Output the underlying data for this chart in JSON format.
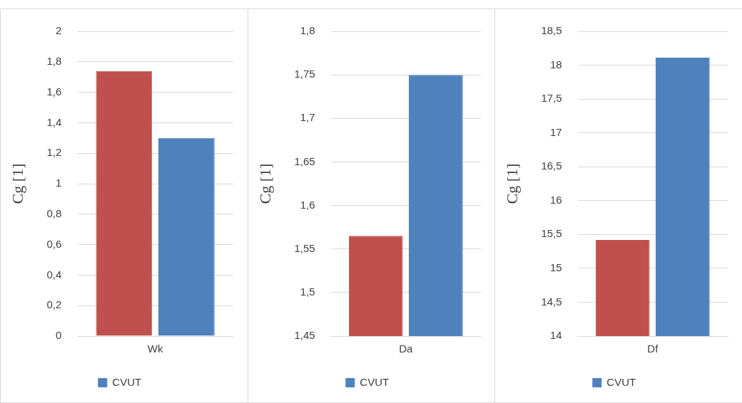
{
  "chart_data": [
    {
      "type": "bar",
      "ylabel": "Cg [1]",
      "categories": [
        "Wk"
      ],
      "series": [
        {
          "color": "#c0504d",
          "values": [
            1.74
          ]
        },
        {
          "name": "CVUT",
          "color": "#4f81bd",
          "values": [
            1.3
          ]
        }
      ],
      "ylim": [
        0,
        2
      ],
      "yticks": [
        0,
        {
          "value": 0.2,
          "label": "0,2"
        },
        {
          "value": 0.4,
          "label": "0,4"
        },
        {
          "value": 0.6,
          "label": "0,6"
        },
        {
          "value": 0.8,
          "label": "0,8"
        },
        1,
        {
          "value": 1.2,
          "label": "1,2"
        },
        {
          "value": 1.4,
          "label": "1,4"
        },
        {
          "value": 1.6,
          "label": "1,6"
        },
        {
          "value": 1.8,
          "label": "1,8"
        },
        2
      ],
      "grid": "y",
      "legend": "bottom"
    },
    {
      "type": "bar",
      "ylabel": "Cg [1]",
      "categories": [
        "Da"
      ],
      "series": [
        {
          "color": "#c0504d",
          "values": [
            1.565
          ]
        },
        {
          "name": "CVUT",
          "color": "#4f81bd",
          "values": [
            1.75
          ]
        }
      ],
      "ylim": [
        1.45,
        1.8
      ],
      "yticks": [
        {
          "value": 1.45,
          "label": "1,45"
        },
        {
          "value": 1.5,
          "label": "1,5"
        },
        {
          "value": 1.55,
          "label": "1,55"
        },
        {
          "value": 1.6,
          "label": "1,6"
        },
        {
          "value": 1.65,
          "label": "1,65"
        },
        {
          "value": 1.7,
          "label": "1,7"
        },
        {
          "value": 1.75,
          "label": "1,75"
        },
        {
          "value": 1.8,
          "label": "1,8"
        }
      ],
      "grid": "y",
      "legend": "bottom"
    },
    {
      "type": "bar",
      "ylabel": "Cg [1]",
      "categories": [
        "Df"
      ],
      "series": [
        {
          "color": "#c0504d",
          "values": [
            15.42
          ]
        },
        {
          "name": "CVUT",
          "color": "#4f81bd",
          "values": [
            18.11
          ]
        }
      ],
      "ylim": [
        14,
        18.5
      ],
      "yticks": [
        14,
        {
          "value": 14.5,
          "label": "14,5"
        },
        15,
        {
          "value": 15.5,
          "label": "15,5"
        },
        16,
        {
          "value": 16.5,
          "label": "16,5"
        },
        17,
        {
          "value": 17.5,
          "label": "17,5"
        },
        18,
        {
          "value": 18.5,
          "label": "18,5"
        }
      ],
      "grid": "y",
      "legend": "bottom"
    }
  ]
}
